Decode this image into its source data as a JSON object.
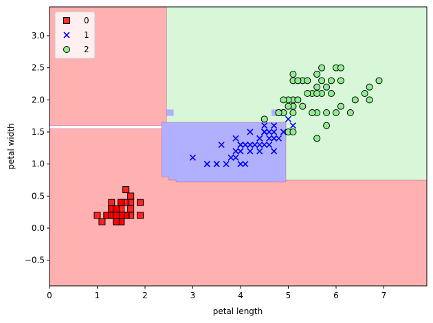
{
  "chart_data": {
    "type": "scatter",
    "title": "",
    "xlabel": "petal length",
    "ylabel": "petal width",
    "xlim": [
      0,
      7.9
    ],
    "ylim": [
      -0.9,
      3.45
    ],
    "x_ticks": [
      0,
      1,
      2,
      3,
      4,
      5,
      6,
      7
    ],
    "y_ticks": [
      -0.5,
      0.0,
      0.5,
      1.0,
      1.5,
      2.0,
      2.5,
      3.0
    ],
    "x_tick_labels": [
      "0",
      "1",
      "2",
      "3",
      "4",
      "5",
      "6",
      "7"
    ],
    "y_tick_labels": [
      "−0.5",
      "0.0",
      "0.5",
      "1.0",
      "1.5",
      "2.0",
      "2.5",
      "3.0"
    ],
    "grid": false,
    "legend_position": "top-left",
    "decision_regions": [
      {
        "class": "0",
        "color": "#ffb0b0",
        "polygon": [
          [
            0,
            3.45
          ],
          [
            2.45,
            3.45
          ],
          [
            2.45,
            1.6
          ],
          [
            0,
            1.6
          ]
        ]
      },
      {
        "class": "1",
        "color": "#b0b0ff",
        "polygon": [
          [
            0,
            1.6
          ],
          [
            2.35,
            1.6
          ],
          [
            2.35,
            1.65
          ],
          [
            4.95,
            1.65
          ],
          [
            4.95,
            1.6
          ],
          [
            0,
            1.6
          ]
        ]
      },
      {
        "class": "0",
        "color": "#ffb0b0",
        "polygon": [
          [
            0,
            1.55
          ],
          [
            2.35,
            1.55
          ],
          [
            2.35,
            0.8
          ],
          [
            2.5,
            0.8
          ],
          [
            2.5,
            0.75
          ],
          [
            2.65,
            0.75
          ],
          [
            2.65,
            0.72
          ],
          [
            4.95,
            0.72
          ],
          [
            4.95,
            0.75
          ],
          [
            7.9,
            0.75
          ],
          [
            7.9,
            -0.9
          ],
          [
            0,
            -0.9
          ]
        ]
      },
      {
        "class": "1",
        "color": "#b0b0ff",
        "polygon": [
          [
            2.35,
            1.65
          ],
          [
            4.95,
            1.65
          ],
          [
            4.95,
            0.75
          ],
          [
            4.95,
            0.72
          ],
          [
            2.65,
            0.72
          ],
          [
            2.65,
            0.75
          ],
          [
            2.5,
            0.75
          ],
          [
            2.5,
            0.8
          ],
          [
            2.35,
            0.8
          ]
        ]
      },
      {
        "class": "2",
        "color": "#d8f7d8",
        "polygon": [
          [
            2.45,
            3.45
          ],
          [
            7.9,
            3.45
          ],
          [
            7.9,
            0.75
          ],
          [
            4.95,
            0.75
          ],
          [
            4.95,
            1.65
          ],
          [
            2.45,
            1.65
          ]
        ]
      },
      {
        "class": "1",
        "color": "#b0b0ff",
        "polygon": [
          [
            2.45,
            1.85
          ],
          [
            2.6,
            1.85
          ],
          [
            2.6,
            1.75
          ],
          [
            2.45,
            1.75
          ]
        ]
      },
      {
        "class": "1",
        "color": "#b0b0ff",
        "polygon": [
          [
            4.65,
            1.85
          ],
          [
            4.95,
            1.85
          ],
          [
            4.95,
            1.75
          ],
          [
            4.65,
            1.75
          ]
        ]
      }
    ],
    "series": [
      {
        "name": "0",
        "marker": "square",
        "color": "#ff0000",
        "points": [
          [
            1.4,
            0.2
          ],
          [
            1.4,
            0.2
          ],
          [
            1.3,
            0.2
          ],
          [
            1.5,
            0.2
          ],
          [
            1.4,
            0.2
          ],
          [
            1.7,
            0.4
          ],
          [
            1.4,
            0.3
          ],
          [
            1.5,
            0.2
          ],
          [
            1.4,
            0.2
          ],
          [
            1.5,
            0.1
          ],
          [
            1.5,
            0.2
          ],
          [
            1.6,
            0.2
          ],
          [
            1.4,
            0.1
          ],
          [
            1.1,
            0.1
          ],
          [
            1.2,
            0.2
          ],
          [
            1.5,
            0.4
          ],
          [
            1.3,
            0.4
          ],
          [
            1.4,
            0.3
          ],
          [
            1.7,
            0.3
          ],
          [
            1.5,
            0.3
          ],
          [
            1.7,
            0.2
          ],
          [
            1.5,
            0.4
          ],
          [
            1.0,
            0.2
          ],
          [
            1.7,
            0.5
          ],
          [
            1.9,
            0.2
          ],
          [
            1.6,
            0.2
          ],
          [
            1.6,
            0.4
          ],
          [
            1.5,
            0.2
          ],
          [
            1.4,
            0.2
          ],
          [
            1.6,
            0.2
          ],
          [
            1.6,
            0.2
          ],
          [
            1.5,
            0.4
          ],
          [
            1.5,
            0.1
          ],
          [
            1.4,
            0.2
          ],
          [
            1.5,
            0.2
          ],
          [
            1.2,
            0.2
          ],
          [
            1.3,
            0.2
          ],
          [
            1.4,
            0.1
          ],
          [
            1.3,
            0.2
          ],
          [
            1.5,
            0.2
          ],
          [
            1.3,
            0.3
          ],
          [
            1.3,
            0.3
          ],
          [
            1.3,
            0.2
          ],
          [
            1.6,
            0.6
          ],
          [
            1.9,
            0.4
          ],
          [
            1.4,
            0.3
          ],
          [
            1.6,
            0.2
          ],
          [
            1.4,
            0.2
          ],
          [
            1.5,
            0.2
          ],
          [
            1.4,
            0.2
          ]
        ]
      },
      {
        "name": "1",
        "marker": "x",
        "color": "#0000ff",
        "points": [
          [
            4.7,
            1.4
          ],
          [
            4.5,
            1.5
          ],
          [
            4.9,
            1.5
          ],
          [
            4.0,
            1.3
          ],
          [
            4.6,
            1.5
          ],
          [
            4.5,
            1.3
          ],
          [
            4.7,
            1.6
          ],
          [
            3.3,
            1.0
          ],
          [
            4.6,
            1.3
          ],
          [
            3.9,
            1.4
          ],
          [
            3.5,
            1.0
          ],
          [
            4.2,
            1.5
          ],
          [
            4.0,
            1.0
          ],
          [
            4.7,
            1.4
          ],
          [
            3.6,
            1.3
          ],
          [
            4.4,
            1.4
          ],
          [
            4.5,
            1.5
          ],
          [
            4.1,
            1.0
          ],
          [
            4.5,
            1.5
          ],
          [
            3.9,
            1.1
          ],
          [
            4.8,
            1.8
          ],
          [
            4.0,
            1.3
          ],
          [
            4.9,
            1.5
          ],
          [
            4.7,
            1.2
          ],
          [
            4.3,
            1.3
          ],
          [
            4.4,
            1.4
          ],
          [
            4.8,
            1.4
          ],
          [
            5.0,
            1.7
          ],
          [
            4.5,
            1.5
          ],
          [
            3.5,
            1.0
          ],
          [
            3.8,
            1.1
          ],
          [
            3.7,
            1.0
          ],
          [
            3.9,
            1.2
          ],
          [
            5.1,
            1.6
          ],
          [
            4.5,
            1.5
          ],
          [
            4.5,
            1.6
          ],
          [
            4.7,
            1.5
          ],
          [
            4.4,
            1.3
          ],
          [
            4.1,
            1.3
          ],
          [
            4.0,
            1.3
          ],
          [
            4.4,
            1.2
          ],
          [
            4.6,
            1.4
          ],
          [
            4.0,
            1.2
          ],
          [
            3.3,
            1.0
          ],
          [
            4.2,
            1.3
          ],
          [
            4.2,
            1.2
          ],
          [
            4.2,
            1.3
          ],
          [
            4.3,
            1.3
          ],
          [
            3.0,
            1.1
          ],
          [
            4.1,
            1.3
          ]
        ]
      },
      {
        "name": "2",
        "marker": "circle",
        "color": "#90ee90",
        "points": [
          [
            6.0,
            2.5
          ],
          [
            5.1,
            1.9
          ],
          [
            5.9,
            2.1
          ],
          [
            5.6,
            1.8
          ],
          [
            5.8,
            2.2
          ],
          [
            6.6,
            2.1
          ],
          [
            4.5,
            1.7
          ],
          [
            6.3,
            1.8
          ],
          [
            5.8,
            1.8
          ],
          [
            6.1,
            2.5
          ],
          [
            5.1,
            2.0
          ],
          [
            5.3,
            1.9
          ],
          [
            5.5,
            2.1
          ],
          [
            5.0,
            2.0
          ],
          [
            5.1,
            2.4
          ],
          [
            5.3,
            2.3
          ],
          [
            5.5,
            1.8
          ],
          [
            6.7,
            2.2
          ],
          [
            6.9,
            2.3
          ],
          [
            5.0,
            1.5
          ],
          [
            5.7,
            2.3
          ],
          [
            4.9,
            2.0
          ],
          [
            6.7,
            2.0
          ],
          [
            4.9,
            1.8
          ],
          [
            5.7,
            2.1
          ],
          [
            6.0,
            1.8
          ],
          [
            4.8,
            1.8
          ],
          [
            4.9,
            1.8
          ],
          [
            5.6,
            2.1
          ],
          [
            5.8,
            1.6
          ],
          [
            6.1,
            1.9
          ],
          [
            6.4,
            2.0
          ],
          [
            5.6,
            2.2
          ],
          [
            5.1,
            1.5
          ],
          [
            5.6,
            1.4
          ],
          [
            6.1,
            2.3
          ],
          [
            5.6,
            2.4
          ],
          [
            5.5,
            1.8
          ],
          [
            4.8,
            1.8
          ],
          [
            5.4,
            2.1
          ],
          [
            5.6,
            2.4
          ],
          [
            5.1,
            2.3
          ],
          [
            5.1,
            1.9
          ],
          [
            5.9,
            2.3
          ],
          [
            5.7,
            2.5
          ],
          [
            5.2,
            2.3
          ],
          [
            5.0,
            1.9
          ],
          [
            5.2,
            2.0
          ],
          [
            5.4,
            2.3
          ],
          [
            5.1,
            1.8
          ]
        ]
      }
    ]
  }
}
